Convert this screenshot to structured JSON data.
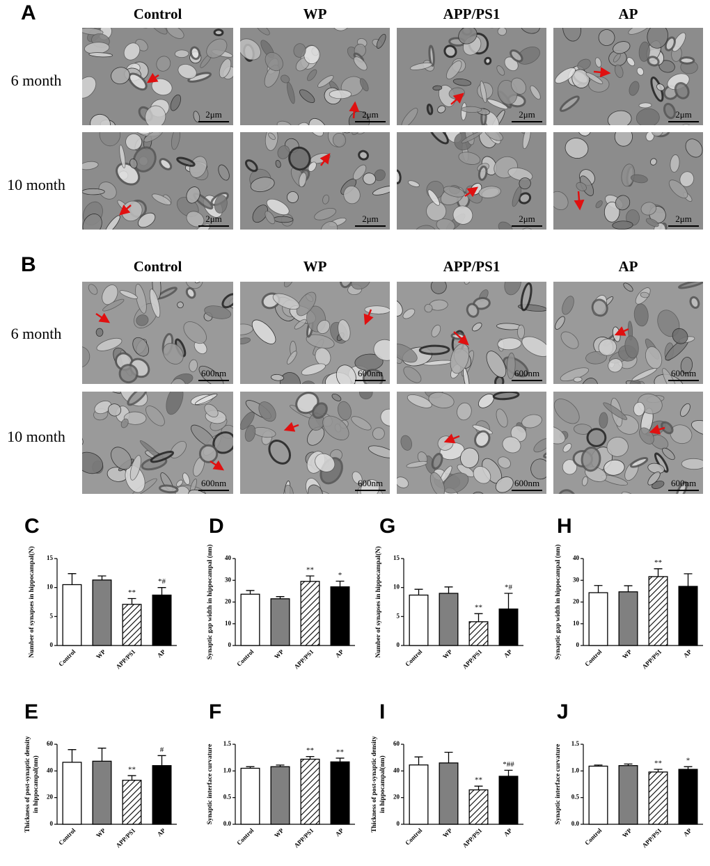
{
  "figure": {
    "A": {
      "label": "A",
      "columns": [
        "Control",
        "WP",
        "APP/PS1",
        "AP"
      ],
      "rows": [
        "6 month",
        "10 month"
      ],
      "scale_bar": "2μm"
    },
    "B": {
      "label": "B",
      "columns": [
        "Control",
        "WP",
        "APP/PS1",
        "AP"
      ],
      "rows": [
        "6 month",
        "10 month"
      ],
      "scale_bar": "600nm"
    }
  },
  "chart_data": [
    {
      "type": "bar",
      "panel": "C",
      "ylabel": [
        "Number of synapses in hippocampal(N)"
      ],
      "categories": [
        "Control",
        "WP",
        "APP/PS1",
        "AP"
      ],
      "values": [
        10.5,
        11.3,
        7.1,
        8.7
      ],
      "errors": [
        1.9,
        0.7,
        1.0,
        1.3
      ],
      "annotations": [
        null,
        null,
        "**",
        "*#"
      ],
      "colors": [
        "#ffffff",
        "#808080",
        "#ffffff",
        "#000000"
      ],
      "hatch": [
        false,
        false,
        true,
        false
      ],
      "ylim": [
        0,
        15
      ],
      "yticks": [
        0,
        5,
        10,
        15
      ]
    },
    {
      "type": "bar",
      "panel": "D",
      "ylabel": [
        "Synaptic gap width in hippocampal (nm)"
      ],
      "categories": [
        "Control",
        "WP",
        "APP/PS1",
        "AP"
      ],
      "values": [
        23.6,
        21.5,
        29.5,
        27.0
      ],
      "errors": [
        1.7,
        1.0,
        2.5,
        2.6
      ],
      "annotations": [
        null,
        null,
        "**",
        "*"
      ],
      "colors": [
        "#ffffff",
        "#808080",
        "#ffffff",
        "#000000"
      ],
      "hatch": [
        false,
        false,
        true,
        false
      ],
      "ylim": [
        0,
        40
      ],
      "yticks": [
        0,
        10,
        20,
        30,
        40
      ]
    },
    {
      "type": "bar",
      "panel": "G",
      "ylabel": [
        "Number of synapses in hippocampal(N)"
      ],
      "categories": [
        "Control",
        "WP",
        "APP/PS1",
        "AP"
      ],
      "values": [
        8.7,
        9.0,
        4.1,
        6.3
      ],
      "errors": [
        1.0,
        1.1,
        1.4,
        2.7
      ],
      "annotations": [
        null,
        null,
        "**",
        "*#"
      ],
      "colors": [
        "#ffffff",
        "#808080",
        "#ffffff",
        "#000000"
      ],
      "hatch": [
        false,
        false,
        true,
        false
      ],
      "ylim": [
        0,
        15
      ],
      "yticks": [
        0,
        5,
        10,
        15
      ]
    },
    {
      "type": "bar",
      "panel": "H",
      "ylabel": [
        "Synaptic gap width in hippocampal (nm)"
      ],
      "categories": [
        "Control",
        "WP",
        "APP/PS1",
        "AP"
      ],
      "values": [
        24.3,
        24.7,
        31.7,
        27.2
      ],
      "errors": [
        3.3,
        2.8,
        3.6,
        5.8
      ],
      "annotations": [
        null,
        null,
        "**",
        null
      ],
      "colors": [
        "#ffffff",
        "#808080",
        "#ffffff",
        "#000000"
      ],
      "hatch": [
        false,
        false,
        true,
        false
      ],
      "ylim": [
        0,
        40
      ],
      "yticks": [
        0,
        10,
        20,
        30,
        40
      ]
    },
    {
      "type": "bar",
      "panel": "E",
      "ylabel": [
        "Thickness of post-synaptic density",
        "in hippocampal(nm)"
      ],
      "categories": [
        "Control",
        "WP",
        "APP/PS1",
        "AP"
      ],
      "values": [
        46.5,
        47.3,
        33.0,
        44.0
      ],
      "errors": [
        9.5,
        9.8,
        3.5,
        7.5
      ],
      "annotations": [
        null,
        null,
        "**",
        "#"
      ],
      "colors": [
        "#ffffff",
        "#808080",
        "#ffffff",
        "#000000"
      ],
      "hatch": [
        false,
        false,
        true,
        false
      ],
      "ylim": [
        0,
        60
      ],
      "yticks": [
        0,
        20,
        40,
        60
      ]
    },
    {
      "type": "bar",
      "panel": "F",
      "ylabel": [
        "Synaptic interface curvature"
      ],
      "categories": [
        "Control",
        "WP",
        "APP/PS1",
        "AP"
      ],
      "values": [
        1.05,
        1.08,
        1.22,
        1.17
      ],
      "errors": [
        0.03,
        0.03,
        0.05,
        0.07
      ],
      "annotations": [
        null,
        null,
        "**",
        "**"
      ],
      "colors": [
        "#ffffff",
        "#808080",
        "#ffffff",
        "#000000"
      ],
      "hatch": [
        false,
        false,
        true,
        false
      ],
      "ylim": [
        0,
        1.5
      ],
      "yticks": [
        {
          "value": 0,
          "label": "0.0"
        },
        0.5,
        {
          "value": 1,
          "label": "1.0"
        },
        1.5
      ]
    },
    {
      "type": "bar",
      "panel": "I",
      "ylabel": [
        "Thickness of post-synaptic density",
        "in hippocampal(nm)"
      ],
      "categories": [
        "Control",
        "WP",
        "APP/PS1",
        "AP"
      ],
      "values": [
        44.5,
        46.0,
        25.8,
        36.0
      ],
      "errors": [
        6.0,
        8.0,
        2.8,
        4.5
      ],
      "annotations": [
        null,
        null,
        "**",
        "*##"
      ],
      "colors": [
        "#ffffff",
        "#808080",
        "#ffffff",
        "#000000"
      ],
      "hatch": [
        false,
        false,
        true,
        false
      ],
      "ylim": [
        0,
        60
      ],
      "yticks": [
        0,
        20,
        40,
        60
      ]
    },
    {
      "type": "bar",
      "panel": "J",
      "ylabel": [
        "Synaptic interface curvature"
      ],
      "categories": [
        "Control",
        "WP",
        "APP/PS1",
        "AP"
      ],
      "values": [
        1.09,
        1.1,
        0.98,
        1.03
      ],
      "errors": [
        0.02,
        0.03,
        0.05,
        0.05
      ],
      "annotations": [
        null,
        null,
        "**",
        "*"
      ],
      "colors": [
        "#ffffff",
        "#808080",
        "#ffffff",
        "#000000"
      ],
      "hatch": [
        false,
        false,
        true,
        false
      ],
      "ylim": [
        0,
        1.5
      ],
      "yticks": [
        {
          "value": 0,
          "label": "0.0"
        },
        0.5,
        {
          "value": 1,
          "label": "1.0"
        },
        1.5
      ]
    }
  ]
}
